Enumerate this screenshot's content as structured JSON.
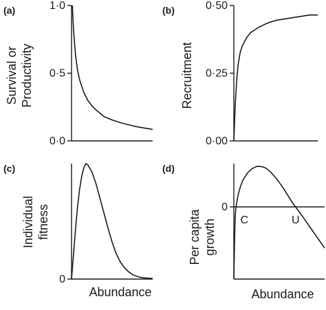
{
  "figure": {
    "background": "#ffffff",
    "ink": "#1a1a1a"
  },
  "chart_data": [
    {
      "panel": "(a)",
      "type": "line",
      "ylabel_lines": [
        "Survival or",
        "Productivity"
      ],
      "xlabel": "",
      "ylim": [
        0,
        1
      ],
      "xlim": [
        0,
        10
      ],
      "yticks": [
        {
          "value": 0,
          "label": "0·0"
        },
        {
          "value": 0.5,
          "label": "0·5"
        },
        {
          "value": 1,
          "label": "1·0"
        }
      ],
      "series": [
        {
          "x": [
            0.1,
            0.25,
            0.5,
            0.75,
            1,
            1.5,
            2,
            2.5,
            3,
            4,
            5,
            6,
            7,
            8,
            9,
            10
          ],
          "y": [
            1.0,
            0.81,
            0.63,
            0.52,
            0.45,
            0.36,
            0.3,
            0.26,
            0.23,
            0.18,
            0.155,
            0.135,
            0.12,
            0.105,
            0.095,
            0.085
          ]
        }
      ]
    },
    {
      "panel": "(b)",
      "type": "line",
      "ylabel_lines": [
        "Recruitment"
      ],
      "xlabel": "",
      "ylim": [
        0,
        0.5
      ],
      "xlim": [
        0,
        10
      ],
      "yticks": [
        {
          "value": 0,
          "label": "0·00"
        },
        {
          "value": 0.25,
          "label": "0·25"
        },
        {
          "value": 0.5,
          "label": "0·50"
        }
      ],
      "series": [
        {
          "x": [
            0,
            0.1,
            0.2,
            0.35,
            0.5,
            0.75,
            1,
            1.5,
            2,
            2.5,
            3,
            4,
            5,
            6,
            7,
            8,
            9,
            10
          ],
          "y": [
            0,
            0.08,
            0.15,
            0.23,
            0.28,
            0.325,
            0.35,
            0.38,
            0.4,
            0.41,
            0.42,
            0.435,
            0.445,
            0.45,
            0.455,
            0.46,
            0.465,
            0.465
          ]
        }
      ]
    },
    {
      "panel": "(c)",
      "type": "line",
      "ylabel_lines": [
        "Individual",
        "fitness"
      ],
      "xlabel": "Abundance",
      "ylim": [
        0,
        1
      ],
      "xlim": [
        0,
        10
      ],
      "yticks": [
        {
          "value": 0,
          "label": "0"
        }
      ],
      "series": [
        {
          "x": [
            0,
            0.25,
            0.5,
            0.75,
            1,
            1.25,
            1.5,
            1.75,
            2,
            2.5,
            3,
            3.5,
            4,
            4.5,
            5,
            5.5,
            6,
            6.5,
            7,
            7.5,
            8,
            8.5,
            9,
            10
          ],
          "y": [
            0,
            0.22,
            0.44,
            0.63,
            0.78,
            0.89,
            0.96,
            1.0,
            0.99,
            0.93,
            0.83,
            0.7,
            0.57,
            0.44,
            0.32,
            0.22,
            0.15,
            0.1,
            0.065,
            0.04,
            0.025,
            0.015,
            0.01,
            0.005
          ]
        }
      ]
    },
    {
      "panel": "(d)",
      "type": "line",
      "ylabel_lines": [
        "Per capita",
        "growth"
      ],
      "xlabel": "Abundance",
      "ylim": [
        -1,
        0.6
      ],
      "xlim": [
        0,
        10
      ],
      "yticks": [
        {
          "value": 0,
          "label": "0"
        }
      ],
      "zero_line": true,
      "annotations": [
        {
          "text": "C",
          "x": 0.25
        },
        {
          "text": "U",
          "x": 6.8
        }
      ],
      "series": [
        {
          "x": [
            0,
            0.05,
            0.1,
            0.15,
            0.2,
            0.25,
            0.3,
            0.4,
            0.5,
            0.75,
            1,
            1.5,
            2,
            2.5,
            3,
            3.5,
            4,
            4.5,
            5,
            5.5,
            6,
            6.5,
            6.8,
            7.5,
            8,
            8.5,
            9,
            9.5,
            10
          ],
          "y": [
            -1.0,
            -0.65,
            -0.35,
            -0.15,
            -0.05,
            0.0,
            0.05,
            0.12,
            0.18,
            0.29,
            0.37,
            0.47,
            0.53,
            0.56,
            0.56,
            0.54,
            0.49,
            0.42,
            0.34,
            0.25,
            0.15,
            0.05,
            0.0,
            -0.12,
            -0.21,
            -0.3,
            -0.39,
            -0.48,
            -0.57
          ]
        }
      ]
    }
  ]
}
